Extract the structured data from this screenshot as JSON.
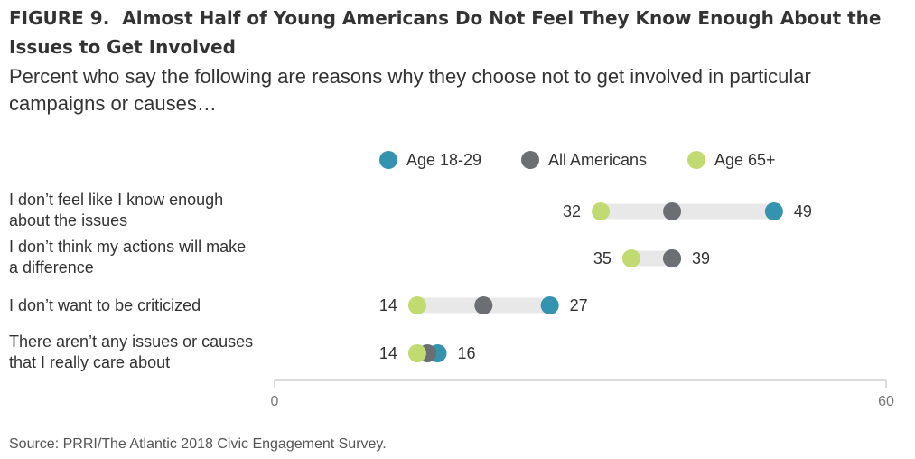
{
  "figure_label": "FIGURE 9.",
  "title": "Almost Half of Young Americans Do Not Feel They Know Enough About the Issues to Get Involved",
  "subtitle": "Percent who say the following are reasons why they choose not to get involved in particular campaigns or causes…",
  "source": "Source: PRRI/The Atlantic 2018 Civic Engagement Survey.",
  "colors": {
    "age_18_29": "#3494b0",
    "all_americans": "#6b6e72",
    "age_65_plus": "#c2da72",
    "range_bar": "#e8e8e8",
    "axis": "#d0d0d0"
  },
  "chart_data": {
    "type": "dot-range",
    "xlim": [
      0,
      60
    ],
    "x_ticks": [
      "0",
      "60"
    ],
    "legend": [
      {
        "key": "age_18_29",
        "label": "Age 18-29"
      },
      {
        "key": "all_americans",
        "label": "All Americans"
      },
      {
        "key": "age_65_plus",
        "label": "Age 65+"
      }
    ],
    "rows": [
      {
        "lines": [
          "I don’t feel like I know enough",
          "about the issues"
        ],
        "age_18_29": 49,
        "all_americans": 39,
        "age_65_plus": 32,
        "low_label": "32",
        "high_label": "49"
      },
      {
        "lines": [
          "I don’t think my actions will make",
          "a difference"
        ],
        "age_18_29": 39,
        "all_americans": 39,
        "age_65_plus": 35,
        "low_label": "35",
        "high_label": "39"
      },
      {
        "lines": [
          "I don’t want to be criticized"
        ],
        "age_18_29": 27,
        "all_americans": 20.5,
        "age_65_plus": 14,
        "low_label": "14",
        "high_label": "27"
      },
      {
        "lines": [
          "There aren’t any issues or causes",
          "that I really care about"
        ],
        "age_18_29": 16,
        "all_americans": 15,
        "age_65_plus": 14,
        "low_label": "14",
        "high_label": "16"
      }
    ]
  }
}
